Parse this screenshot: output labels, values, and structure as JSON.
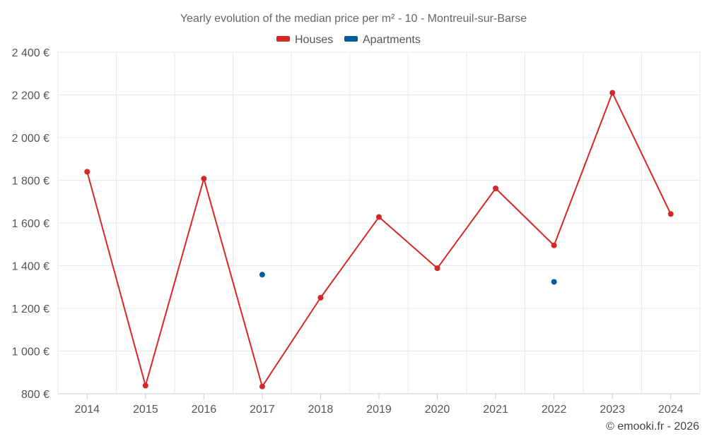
{
  "chart_data": {
    "type": "line",
    "title": "Yearly evolution of the median price per m² - 10 - Montreuil-sur-Barse",
    "categories": [
      "2014",
      "2015",
      "2016",
      "2017",
      "2018",
      "2019",
      "2020",
      "2021",
      "2022",
      "2023",
      "2024"
    ],
    "series": [
      {
        "name": "Houses",
        "color": "#d62728",
        "values": [
          1840,
          838,
          1808,
          834,
          1250,
          1628,
          1388,
          1762,
          1495,
          2210,
          1642
        ]
      },
      {
        "name": "Apartments",
        "color": "#005f99",
        "values": [
          null,
          null,
          null,
          1358,
          null,
          null,
          null,
          null,
          1324,
          null,
          null
        ]
      }
    ],
    "ylim": [
      800,
      2400
    ],
    "yticks": [
      800,
      1000,
      1200,
      1400,
      1600,
      1800,
      2000,
      2200,
      2400
    ],
    "ytick_labels": [
      "800 €",
      "1 000 €",
      "1 200 €",
      "1 400 €",
      "1 600 €",
      "1 800 €",
      "2 000 €",
      "2 200 €",
      "2 400 €"
    ],
    "xlabel": "",
    "ylabel": "",
    "grid": true,
    "legend_position": "top-center"
  },
  "credit": "© emooki.fr - 2026"
}
